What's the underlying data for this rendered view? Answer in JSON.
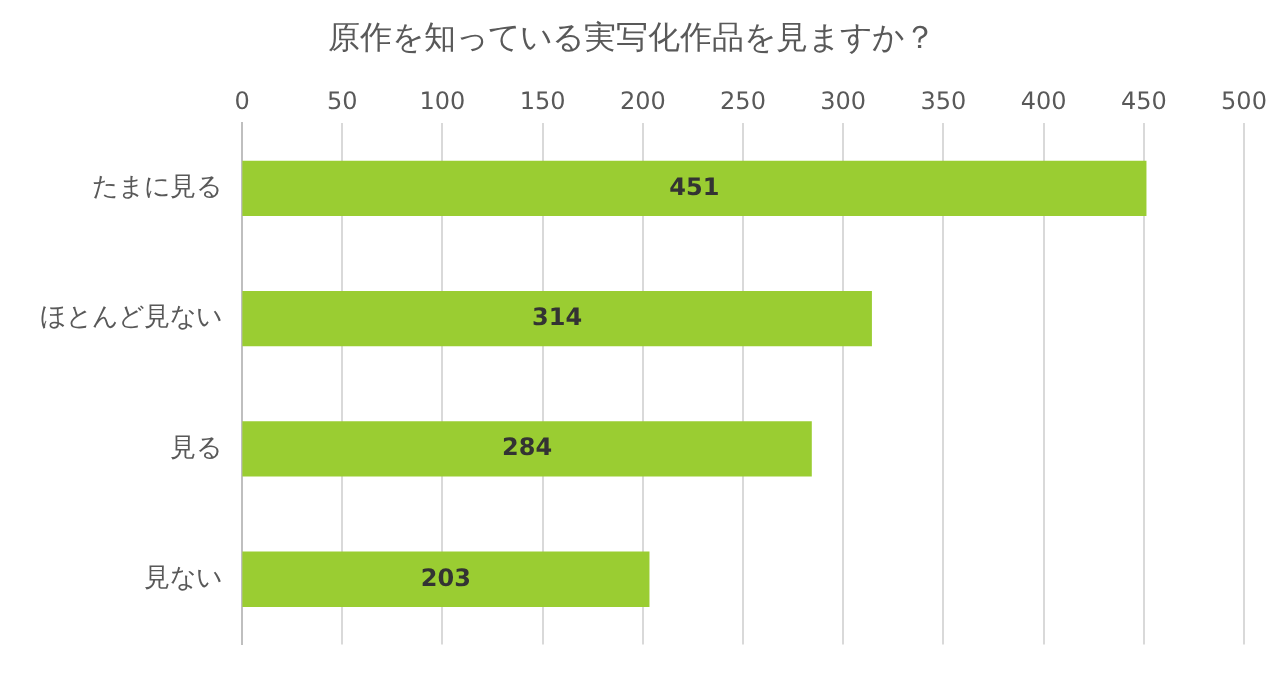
{
  "chart_data": {
    "type": "bar",
    "orientation": "horizontal",
    "title": "原作を知っている実写化作品を見ますか？",
    "categories": [
      "たまに見る",
      "ほとんど見ない",
      "見る",
      "見ない"
    ],
    "values": [
      451,
      314,
      284,
      203
    ],
    "color": "#9acd32",
    "xlim": [
      0,
      500
    ],
    "xticks": [
      0,
      50,
      100,
      150,
      200,
      250,
      300,
      350,
      400,
      450,
      500
    ],
    "grid": "x",
    "data_labels": true,
    "legend": false
  }
}
